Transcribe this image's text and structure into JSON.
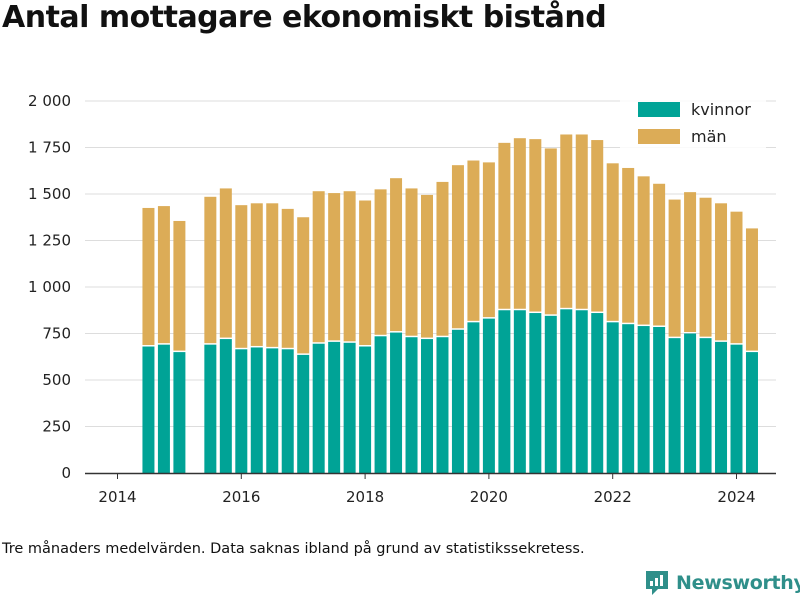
{
  "title": "Antal mottagare ekonomiskt bistånd",
  "note": "Tre månaders medelvärden. Data saknas ibland på grund av statistikssekretess.",
  "brand": {
    "name": "Newsworthy",
    "icon": "newsworthy-logo-icon"
  },
  "colors": {
    "kvinnor": "#00a396",
    "man": "#dcac57",
    "grid": "#dddddd",
    "axis": "#333333",
    "brand": "#2f8f8a"
  },
  "chart_data": {
    "type": "bar",
    "stacked": true,
    "title": "Antal mottagare ekonomiskt bistånd",
    "xlabel": "",
    "ylabel": "",
    "x_ticks": [
      "2014",
      "2016",
      "2018",
      "2020",
      "2022",
      "2024"
    ],
    "y_ticks": [
      "0",
      "250",
      "500",
      "750",
      "1 000",
      "1 250",
      "1 500",
      "1 750",
      "2 000"
    ],
    "ylim": [
      0,
      2000
    ],
    "grid": true,
    "legend_position": "top-right",
    "categories": [
      "2014-07",
      "2014-10",
      "2015-01",
      "2015-04",
      "2015-07",
      "2015-10",
      "2016-01",
      "2016-04",
      "2016-07",
      "2016-10",
      "2017-01",
      "2017-04",
      "2017-07",
      "2017-10",
      "2018-01",
      "2018-04",
      "2018-07",
      "2018-10",
      "2019-01",
      "2019-04",
      "2019-07",
      "2019-10",
      "2020-01",
      "2020-04",
      "2020-07",
      "2020-10",
      "2021-01",
      "2021-04",
      "2021-07",
      "2021-10",
      "2022-01",
      "2022-04",
      "2022-07",
      "2022-10",
      "2023-01",
      "2023-04",
      "2023-07",
      "2023-10",
      "2024-01",
      "2024-04"
    ],
    "series": [
      {
        "name": "kvinnor",
        "values": [
          680,
          690,
          650,
          null,
          690,
          720,
          665,
          675,
          670,
          665,
          635,
          695,
          705,
          700,
          680,
          735,
          755,
          730,
          720,
          730,
          770,
          810,
          830,
          875,
          875,
          860,
          845,
          880,
          875,
          860,
          810,
          800,
          790,
          785,
          725,
          750,
          725,
          705,
          690,
          650
        ]
      },
      {
        "name": "män",
        "values": [
          745,
          745,
          705,
          null,
          795,
          810,
          775,
          775,
          780,
          755,
          740,
          820,
          800,
          815,
          785,
          790,
          830,
          800,
          775,
          835,
          885,
          870,
          840,
          900,
          925,
          935,
          900,
          940,
          945,
          930,
          855,
          840,
          805,
          770,
          745,
          760,
          755,
          745,
          715,
          665
        ]
      }
    ]
  }
}
